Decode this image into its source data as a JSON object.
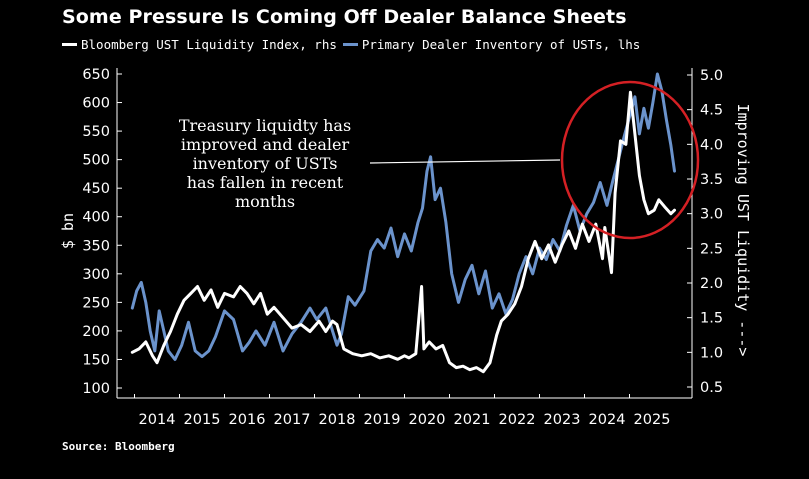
{
  "title": "Some Pressure Is Coming Off Dealer Balance Sheets",
  "source": "Source: Bloomberg",
  "colors": {
    "background": "#000000",
    "white_series": "#ffffff",
    "blue_series": "#6b93cc",
    "circle": "#d42024"
  },
  "chart_data": {
    "type": "line",
    "title": "Some Pressure Is Coming Off Dealer Balance Sheets",
    "left_axis": {
      "label": "$ bn",
      "range": [
        100,
        650
      ],
      "ticks": [
        650,
        600,
        550,
        500,
        450,
        400,
        350,
        300,
        250,
        200,
        150,
        100
      ]
    },
    "right_axis": {
      "label": "Improving UST Liquidity --->",
      "range": [
        0.5,
        5.0
      ],
      "ticks": [
        "5.0",
        "4.5",
        "4.0",
        "3.5",
        "3.0",
        "2.5",
        "2.0",
        "1.5",
        "1.0",
        "0.5"
      ]
    },
    "x_axis": {
      "range": [
        2013.4,
        2025.8
      ],
      "ticks": [
        "2014",
        "2015",
        "2016",
        "2017",
        "2018",
        "2019",
        "2020",
        "2021",
        "2022",
        "2023",
        "2024",
        "2025"
      ]
    },
    "grid": false,
    "legend_position": "top",
    "series": [
      {
        "name": "Bloomberg UST Liquidity Index, rhs",
        "axis": "right",
        "color": "#ffffff",
        "points": [
          [
            2013.45,
            1.0
          ],
          [
            2013.6,
            1.05
          ],
          [
            2013.75,
            1.15
          ],
          [
            2013.9,
            0.95
          ],
          [
            2014.0,
            0.85
          ],
          [
            2014.15,
            1.1
          ],
          [
            2014.3,
            1.3
          ],
          [
            2014.45,
            1.55
          ],
          [
            2014.6,
            1.75
          ],
          [
            2014.75,
            1.85
          ],
          [
            2014.9,
            1.95
          ],
          [
            2015.05,
            1.75
          ],
          [
            2015.2,
            1.9
          ],
          [
            2015.35,
            1.65
          ],
          [
            2015.5,
            1.85
          ],
          [
            2015.7,
            1.8
          ],
          [
            2015.85,
            1.95
          ],
          [
            2016.0,
            1.85
          ],
          [
            2016.15,
            1.7
          ],
          [
            2016.3,
            1.85
          ],
          [
            2016.45,
            1.55
          ],
          [
            2016.6,
            1.65
          ],
          [
            2016.8,
            1.5
          ],
          [
            2017.0,
            1.35
          ],
          [
            2017.2,
            1.4
          ],
          [
            2017.4,
            1.3
          ],
          [
            2017.6,
            1.45
          ],
          [
            2017.75,
            1.3
          ],
          [
            2017.9,
            1.45
          ],
          [
            2018.0,
            1.4
          ],
          [
            2018.15,
            1.05
          ],
          [
            2018.35,
            0.98
          ],
          [
            2018.55,
            0.95
          ],
          [
            2018.75,
            0.98
          ],
          [
            2018.95,
            0.92
          ],
          [
            2019.15,
            0.95
          ],
          [
            2019.35,
            0.9
          ],
          [
            2019.5,
            0.95
          ],
          [
            2019.6,
            0.92
          ],
          [
            2019.75,
            0.98
          ],
          [
            2019.88,
            1.95
          ],
          [
            2019.93,
            1.05
          ],
          [
            2020.05,
            1.15
          ],
          [
            2020.2,
            1.05
          ],
          [
            2020.35,
            1.1
          ],
          [
            2020.5,
            0.85
          ],
          [
            2020.65,
            0.78
          ],
          [
            2020.8,
            0.8
          ],
          [
            2020.95,
            0.75
          ],
          [
            2021.1,
            0.78
          ],
          [
            2021.25,
            0.72
          ],
          [
            2021.4,
            0.85
          ],
          [
            2021.55,
            1.25
          ],
          [
            2021.65,
            1.45
          ],
          [
            2021.8,
            1.55
          ],
          [
            2021.95,
            1.7
          ],
          [
            2022.1,
            1.95
          ],
          [
            2022.25,
            2.35
          ],
          [
            2022.4,
            2.6
          ],
          [
            2022.55,
            2.35
          ],
          [
            2022.7,
            2.55
          ],
          [
            2022.85,
            2.3
          ],
          [
            2023.0,
            2.55
          ],
          [
            2023.15,
            2.75
          ],
          [
            2023.3,
            2.5
          ],
          [
            2023.45,
            2.85
          ],
          [
            2023.6,
            2.6
          ],
          [
            2023.75,
            2.85
          ],
          [
            2023.9,
            2.35
          ],
          [
            2023.95,
            2.8
          ],
          [
            2024.1,
            2.15
          ],
          [
            2024.18,
            3.3
          ],
          [
            2024.3,
            4.05
          ],
          [
            2024.42,
            4.0
          ],
          [
            2024.52,
            4.75
          ],
          [
            2024.62,
            4.15
          ],
          [
            2024.72,
            3.55
          ],
          [
            2024.82,
            3.2
          ],
          [
            2024.92,
            3.0
          ],
          [
            2025.05,
            3.05
          ],
          [
            2025.15,
            3.2
          ],
          [
            2025.28,
            3.1
          ],
          [
            2025.42,
            3.0
          ],
          [
            2025.5,
            3.05
          ]
        ]
      },
      {
        "name": "Primary Dealer Inventory of USTs, lhs",
        "axis": "left",
        "color": "#6b93cc",
        "points": [
          [
            2013.45,
            240
          ],
          [
            2013.55,
            270
          ],
          [
            2013.65,
            285
          ],
          [
            2013.75,
            250
          ],
          [
            2013.85,
            200
          ],
          [
            2013.95,
            165
          ],
          [
            2014.05,
            235
          ],
          [
            2014.15,
            200
          ],
          [
            2014.25,
            165
          ],
          [
            2014.4,
            150
          ],
          [
            2014.55,
            175
          ],
          [
            2014.7,
            215
          ],
          [
            2014.85,
            165
          ],
          [
            2015.0,
            155
          ],
          [
            2015.15,
            165
          ],
          [
            2015.3,
            190
          ],
          [
            2015.5,
            235
          ],
          [
            2015.7,
            220
          ],
          [
            2015.9,
            165
          ],
          [
            2016.05,
            180
          ],
          [
            2016.2,
            200
          ],
          [
            2016.4,
            175
          ],
          [
            2016.6,
            215
          ],
          [
            2016.8,
            165
          ],
          [
            2017.0,
            195
          ],
          [
            2017.2,
            215
          ],
          [
            2017.4,
            240
          ],
          [
            2017.55,
            220
          ],
          [
            2017.75,
            240
          ],
          [
            2017.9,
            200
          ],
          [
            2018.0,
            175
          ],
          [
            2018.1,
            195
          ],
          [
            2018.25,
            260
          ],
          [
            2018.4,
            245
          ],
          [
            2018.6,
            270
          ],
          [
            2018.75,
            340
          ],
          [
            2018.9,
            360
          ],
          [
            2019.05,
            345
          ],
          [
            2019.2,
            380
          ],
          [
            2019.35,
            330
          ],
          [
            2019.5,
            370
          ],
          [
            2019.65,
            340
          ],
          [
            2019.8,
            390
          ],
          [
            2019.9,
            415
          ],
          [
            2020.0,
            480
          ],
          [
            2020.08,
            505
          ],
          [
            2020.18,
            430
          ],
          [
            2020.3,
            450
          ],
          [
            2020.42,
            390
          ],
          [
            2020.55,
            300
          ],
          [
            2020.7,
            250
          ],
          [
            2020.85,
            290
          ],
          [
            2021.0,
            315
          ],
          [
            2021.15,
            265
          ],
          [
            2021.3,
            305
          ],
          [
            2021.45,
            240
          ],
          [
            2021.6,
            265
          ],
          [
            2021.75,
            230
          ],
          [
            2021.9,
            255
          ],
          [
            2022.05,
            300
          ],
          [
            2022.2,
            330
          ],
          [
            2022.35,
            300
          ],
          [
            2022.5,
            345
          ],
          [
            2022.65,
            325
          ],
          [
            2022.8,
            360
          ],
          [
            2022.95,
            340
          ],
          [
            2023.1,
            385
          ],
          [
            2023.25,
            420
          ],
          [
            2023.4,
            375
          ],
          [
            2023.55,
            405
          ],
          [
            2023.7,
            425
          ],
          [
            2023.85,
            460
          ],
          [
            2024.0,
            420
          ],
          [
            2024.12,
            460
          ],
          [
            2024.25,
            500
          ],
          [
            2024.38,
            540
          ],
          [
            2024.5,
            575
          ],
          [
            2024.62,
            610
          ],
          [
            2024.72,
            545
          ],
          [
            2024.82,
            590
          ],
          [
            2024.92,
            555
          ],
          [
            2025.02,
            600
          ],
          [
            2025.12,
            650
          ],
          [
            2025.22,
            620
          ],
          [
            2025.32,
            570
          ],
          [
            2025.42,
            525
          ],
          [
            2025.5,
            480
          ]
        ]
      }
    ],
    "annotation": {
      "lines": [
        "Treasury liquidty has",
        "improved and dealer",
        "inventory of USTs",
        "has fallen in recent",
        "months"
      ]
    }
  }
}
